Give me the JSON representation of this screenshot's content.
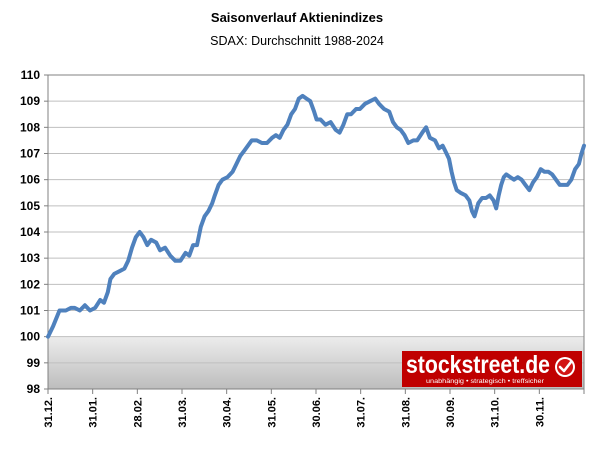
{
  "chart_data": {
    "type": "line",
    "title": "Saisonverlauf Aktienindizes",
    "subtitle": "SDAX: Durchschnitt 1988-2024",
    "xlabel": "",
    "ylabel": "",
    "ylim": [
      98,
      110
    ],
    "yticks": [
      "98",
      "99",
      "100",
      "101",
      "102",
      "103",
      "104",
      "105",
      "106",
      "107",
      "108",
      "109",
      "110"
    ],
    "xticks": [
      "31.12.",
      "31.01.",
      "28.02.",
      "31.03.",
      "30.04.",
      "31.05.",
      "30.06.",
      "31.07.",
      "31.08.",
      "30.09.",
      "31.10.",
      "30.11."
    ],
    "grid": true,
    "legend": "none",
    "line_color": "#4f81bd",
    "baseline": 100,
    "series": [
      {
        "values": [
          [
            0,
            100.0
          ],
          [
            4,
            100.4
          ],
          [
            9,
            101.0
          ],
          [
            14,
            101.0
          ],
          [
            18,
            101.1
          ],
          [
            21,
            101.1
          ],
          [
            25,
            101.0
          ],
          [
            29,
            101.2
          ],
          [
            33,
            101.0
          ],
          [
            37,
            101.1
          ],
          [
            41,
            101.4
          ],
          [
            44,
            101.3
          ],
          [
            47,
            101.7
          ],
          [
            49,
            102.2
          ],
          [
            52,
            102.4
          ],
          [
            56,
            102.5
          ],
          [
            60,
            102.6
          ],
          [
            63,
            102.9
          ],
          [
            66,
            103.4
          ],
          [
            69,
            103.8
          ],
          [
            72,
            104.0
          ],
          [
            75,
            103.8
          ],
          [
            78,
            103.5
          ],
          [
            81,
            103.7
          ],
          [
            85,
            103.6
          ],
          [
            88,
            103.3
          ],
          [
            92,
            103.4
          ],
          [
            96,
            103.1
          ],
          [
            100,
            102.9
          ],
          [
            104,
            102.9
          ],
          [
            108,
            103.2
          ],
          [
            111,
            103.1
          ],
          [
            114,
            103.5
          ],
          [
            117,
            103.5
          ],
          [
            120,
            104.2
          ],
          [
            123,
            104.6
          ],
          [
            126,
            104.8
          ],
          [
            129,
            105.1
          ],
          [
            131,
            105.4
          ],
          [
            134,
            105.8
          ],
          [
            137,
            106.0
          ],
          [
            141,
            106.1
          ],
          [
            145,
            106.3
          ],
          [
            148,
            106.6
          ],
          [
            151,
            106.9
          ],
          [
            154,
            107.1
          ],
          [
            157,
            107.3
          ],
          [
            160,
            107.5
          ],
          [
            164,
            107.5
          ],
          [
            168,
            107.4
          ],
          [
            172,
            107.4
          ],
          [
            176,
            107.6
          ],
          [
            179,
            107.7
          ],
          [
            182,
            107.6
          ],
          [
            185,
            107.9
          ],
          [
            188,
            108.1
          ],
          [
            191,
            108.5
          ],
          [
            194,
            108.7
          ],
          [
            197,
            109.1
          ],
          [
            200,
            109.2
          ],
          [
            203,
            109.1
          ],
          [
            206,
            109.0
          ],
          [
            209,
            108.6
          ],
          [
            211,
            108.3
          ],
          [
            214,
            108.3
          ],
          [
            218,
            108.1
          ],
          [
            222,
            108.2
          ],
          [
            226,
            107.9
          ],
          [
            229,
            107.8
          ],
          [
            232,
            108.1
          ],
          [
            235,
            108.5
          ],
          [
            238,
            108.5
          ],
          [
            242,
            108.7
          ],
          [
            245,
            108.7
          ],
          [
            249,
            108.9
          ],
          [
            253,
            109.0
          ],
          [
            257,
            109.1
          ],
          [
            260,
            108.9
          ],
          [
            264,
            108.7
          ],
          [
            268,
            108.6
          ],
          [
            271,
            108.2
          ],
          [
            274,
            108.0
          ],
          [
            277,
            107.9
          ],
          [
            280,
            107.7
          ],
          [
            283,
            107.4
          ],
          [
            287,
            107.5
          ],
          [
            290,
            107.5
          ],
          [
            294,
            107.8
          ],
          [
            297,
            108.0
          ],
          [
            300,
            107.6
          ],
          [
            304,
            107.5
          ],
          [
            307,
            107.2
          ],
          [
            310,
            107.3
          ],
          [
            313,
            107.0
          ],
          [
            315,
            106.8
          ],
          [
            317,
            106.3
          ],
          [
            319,
            105.9
          ],
          [
            321,
            105.6
          ],
          [
            324,
            105.5
          ],
          [
            328,
            105.4
          ],
          [
            331,
            105.2
          ],
          [
            333,
            104.8
          ],
          [
            335,
            104.6
          ],
          [
            338,
            105.1
          ],
          [
            341,
            105.3
          ],
          [
            344,
            105.3
          ],
          [
            347,
            105.4
          ],
          [
            350,
            105.2
          ],
          [
            352,
            104.9
          ],
          [
            354,
            105.4
          ],
          [
            356,
            105.8
          ],
          [
            358,
            106.1
          ],
          [
            360,
            106.2
          ],
          [
            363,
            106.1
          ],
          [
            366,
            106.0
          ],
          [
            369,
            106.1
          ],
          [
            372,
            106.0
          ],
          [
            375,
            105.8
          ],
          [
            378,
            105.6
          ],
          [
            381,
            105.9
          ],
          [
            384,
            106.1
          ],
          [
            387,
            106.4
          ],
          [
            390,
            106.3
          ],
          [
            393,
            106.3
          ],
          [
            396,
            106.2
          ],
          [
            399,
            106.0
          ],
          [
            402,
            105.8
          ],
          [
            405,
            105.8
          ],
          [
            408,
            105.8
          ],
          [
            411,
            106.0
          ],
          [
            414,
            106.4
          ],
          [
            417,
            106.6
          ],
          [
            419,
            107.0
          ],
          [
            421,
            107.3
          ]
        ]
      }
    ]
  },
  "logo": {
    "name": "stockstreet.de",
    "tagline": "unabhängig • strategisch • treffsicher",
    "background": "#c00000"
  }
}
